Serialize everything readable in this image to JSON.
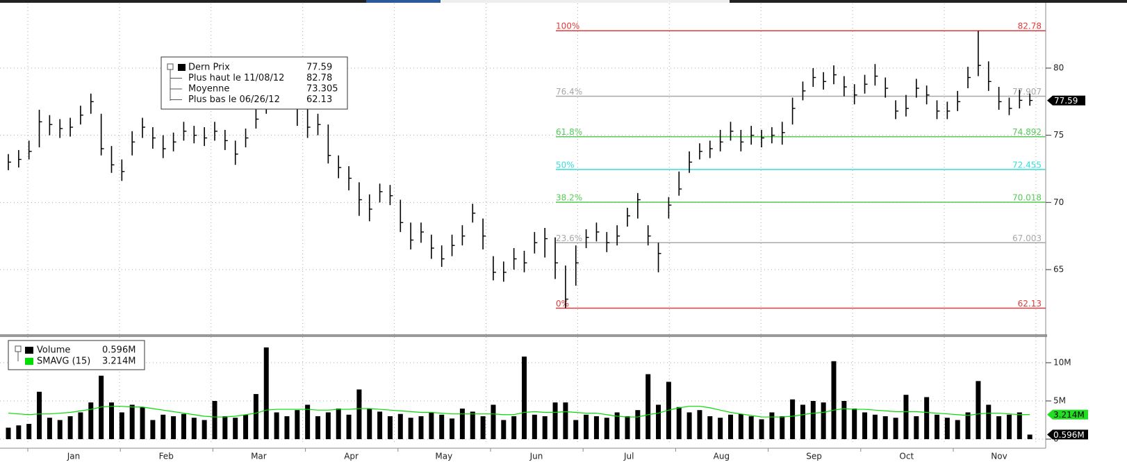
{
  "chart_data": [
    {
      "type": "ohlc",
      "color": "#000000",
      "legend": [
        {
          "label": "Dern Prix",
          "value": 77.59
        },
        {
          "label": "Plus haut le 11/08/12",
          "value": 82.78
        },
        {
          "label": "Moyenne",
          "value": 73.305
        },
        {
          "label": "Plus bas le 06/26/12",
          "value": 62.13
        }
      ],
      "high": [
        73.6,
        73.9,
        74.6,
        76.9,
        76.5,
        76.2,
        76.3,
        77.2,
        78.1,
        76.6,
        74.2,
        73.2,
        75.3,
        76.3,
        75.6,
        75.0,
        75.2,
        76.0,
        75.7,
        75.6,
        76.0,
        75.4,
        74.6,
        75.5,
        77.0,
        78.0,
        78.5,
        78.6,
        78.0,
        77.3,
        76.6,
        75.8,
        73.5,
        72.7,
        71.5,
        70.6,
        71.4,
        71.3,
        70.2,
        68.5,
        68.5,
        67.6,
        66.8,
        67.6,
        68.3,
        69.9,
        68.8,
        66.0,
        65.6,
        66.6,
        66.4,
        67.8,
        68.1,
        67.4,
        65.3,
        66.8,
        68.0,
        68.5,
        67.8,
        68.3,
        69.6,
        70.7,
        68.3,
        67.0,
        70.4,
        72.3,
        73.8,
        74.4,
        74.6,
        75.4,
        76.0,
        75.4,
        75.7,
        75.4,
        75.6,
        76.0,
        77.8,
        79.0,
        80.0,
        79.7,
        80.2,
        79.4,
        78.8,
        79.5,
        80.3,
        79.3,
        77.6,
        78.0,
        79.2,
        78.7,
        77.6,
        77.5,
        78.3,
        80.1,
        82.78,
        80.5,
        78.6,
        77.8,
        78.4,
        78.1
      ],
      "low": [
        72.4,
        72.6,
        73.2,
        74.1,
        75.0,
        74.8,
        74.9,
        75.8,
        76.6,
        73.5,
        72.2,
        71.6,
        73.5,
        74.8,
        74.0,
        73.3,
        73.8,
        74.6,
        74.4,
        74.2,
        74.6,
        73.9,
        72.8,
        74.1,
        75.5,
        76.6,
        77.1,
        77.4,
        75.7,
        74.8,
        75.0,
        72.9,
        71.8,
        70.9,
        69.0,
        68.6,
        70.0,
        69.8,
        67.8,
        66.5,
        67.0,
        65.8,
        65.2,
        66.0,
        66.8,
        68.5,
        66.5,
        64.2,
        64.1,
        65.0,
        64.8,
        66.2,
        65.9,
        64.3,
        62.13,
        63.8,
        66.6,
        67.1,
        66.3,
        66.8,
        68.2,
        68.8,
        66.8,
        64.8,
        68.8,
        70.5,
        72.2,
        73.2,
        73.3,
        73.8,
        74.6,
        73.8,
        74.3,
        74.1,
        74.4,
        74.3,
        75.8,
        77.6,
        78.6,
        78.4,
        78.8,
        77.9,
        77.3,
        78.1,
        78.7,
        77.8,
        76.2,
        76.4,
        77.8,
        77.3,
        76.2,
        76.2,
        76.8,
        78.5,
        79.4,
        78.3,
        76.9,
        76.5,
        77.0,
        77.2
      ],
      "close": [
        73.0,
        73.2,
        73.8,
        76.0,
        75.8,
        75.5,
        75.6,
        76.5,
        77.5,
        74.0,
        72.8,
        72.3,
        74.5,
        75.6,
        74.8,
        74.0,
        74.5,
        75.3,
        75.0,
        74.8,
        75.3,
        74.6,
        73.6,
        74.8,
        76.2,
        77.3,
        77.8,
        78.0,
        77.2,
        75.6,
        75.8,
        73.5,
        72.6,
        71.8,
        70.2,
        69.5,
        70.8,
        70.5,
        68.5,
        67.2,
        67.8,
        66.6,
        65.8,
        66.8,
        67.5,
        69.2,
        67.5,
        64.8,
        64.8,
        65.8,
        65.5,
        67.0,
        67.3,
        65.5,
        62.8,
        65.5,
        67.4,
        67.8,
        67.0,
        67.5,
        69.0,
        70.2,
        67.5,
        66.2,
        69.8,
        71.0,
        73.0,
        73.8,
        74.0,
        74.5,
        75.3,
        74.5,
        75.0,
        74.8,
        75.0,
        75.2,
        77.0,
        78.3,
        79.3,
        79.0,
        79.5,
        78.6,
        78.0,
        78.8,
        79.4,
        78.5,
        76.8,
        77.0,
        78.5,
        78.0,
        76.8,
        76.8,
        77.5,
        79.3,
        80.2,
        79.0,
        77.5,
        77.0,
        77.6,
        77.59
      ],
      "ylim": [
        60.24,
        84.81
      ],
      "yticks": [
        65,
        70,
        75,
        80
      ],
      "grid": true,
      "fib": [
        {
          "label": "100%",
          "value": 82.78,
          "color": "#e03a3a"
        },
        {
          "label": "76.4%",
          "value": 77.907,
          "color": "#a8a8a8"
        },
        {
          "label": "61.8%",
          "value": 74.892,
          "color": "#55cc55"
        },
        {
          "label": "50%",
          "value": 72.455,
          "color": "#33dddd"
        },
        {
          "label": "38.2%",
          "value": 70.018,
          "color": "#55cc55"
        },
        {
          "label": "23.6%",
          "value": 67.003,
          "color": "#a8a8a8"
        },
        {
          "label": "0%",
          "value": 62.13,
          "color": "#e03a3a"
        }
      ]
    },
    {
      "type": "bar",
      "series": [
        {
          "name": "Volume",
          "color": "#000000",
          "last": 0.596,
          "last_label": "0.596M",
          "values": [
            1.5,
            1.8,
            2.0,
            6.2,
            2.8,
            2.5,
            3.0,
            3.5,
            4.8,
            8.3,
            4.8,
            3.5,
            4.5,
            4.2,
            2.5,
            3.2,
            3.0,
            3.3,
            2.8,
            2.5,
            5.0,
            3.0,
            2.8,
            3.2,
            5.9,
            12.0,
            3.5,
            3.0,
            3.8,
            4.5,
            3.0,
            3.5,
            4.0,
            3.2,
            6.5,
            4.0,
            3.6,
            3.0,
            3.3,
            2.8,
            3.0,
            3.5,
            3.2,
            2.7,
            4.0,
            3.6,
            3.0,
            4.5,
            2.5,
            3.0,
            10.8,
            3.2,
            3.0,
            4.8,
            4.8,
            2.5,
            3.2,
            3.0,
            2.8,
            3.5,
            3.0,
            3.8,
            8.5,
            4.5,
            7.5,
            4.2,
            3.5,
            3.8,
            3.0,
            2.8,
            3.2,
            3.3,
            3.0,
            2.6,
            3.5,
            3.0,
            5.2,
            4.5,
            5.0,
            4.8,
            10.2,
            5.0,
            4.0,
            3.5,
            3.2,
            3.0,
            2.8,
            5.8,
            3.0,
            5.5,
            3.2,
            2.8,
            2.5,
            3.5,
            7.6,
            4.5,
            3.0,
            3.2,
            3.5,
            0.596
          ]
        },
        {
          "name": "SMAVG (15)",
          "color": "#00dd00",
          "last": 3.214,
          "last_label": "3.214M",
          "values": [
            3.4,
            3.3,
            3.2,
            3.3,
            3.3,
            3.4,
            3.5,
            3.7,
            3.9,
            4.2,
            4.3,
            4.3,
            4.2,
            4.2,
            4.0,
            3.8,
            3.6,
            3.4,
            3.2,
            3.0,
            2.9,
            2.9,
            3.0,
            3.2,
            3.4,
            3.8,
            3.9,
            3.9,
            3.9,
            3.9,
            3.8,
            3.8,
            3.9,
            3.9,
            4.0,
            4.0,
            3.9,
            3.8,
            3.7,
            3.6,
            3.5,
            3.5,
            3.4,
            3.3,
            3.3,
            3.3,
            3.3,
            3.3,
            3.2,
            3.2,
            3.5,
            3.6,
            3.5,
            3.5,
            3.6,
            3.5,
            3.4,
            3.4,
            3.2,
            3.0,
            2.9,
            2.9,
            3.2,
            3.4,
            3.8,
            4.1,
            4.3,
            4.3,
            4.1,
            3.8,
            3.5,
            3.3,
            3.1,
            2.9,
            2.9,
            2.9,
            3.0,
            3.2,
            3.4,
            3.5,
            3.8,
            4.0,
            3.9,
            3.9,
            3.8,
            3.7,
            3.6,
            3.6,
            3.6,
            3.5,
            3.4,
            3.3,
            3.2,
            3.1,
            3.3,
            3.4,
            3.4,
            3.3,
            3.2,
            3.214
          ]
        }
      ],
      "ylim": [
        -0.73,
        13.18
      ],
      "yticks": [
        {
          "value": 0,
          "label": "0"
        },
        {
          "value": 5,
          "label": "5M"
        },
        {
          "value": 10,
          "label": "10M"
        }
      ],
      "grid": true
    }
  ],
  "months": [
    "Jan",
    "Feb",
    "Mar",
    "Apr",
    "May",
    "Jun",
    "Jul",
    "Aug",
    "Sep",
    "Oct",
    "Nov"
  ]
}
